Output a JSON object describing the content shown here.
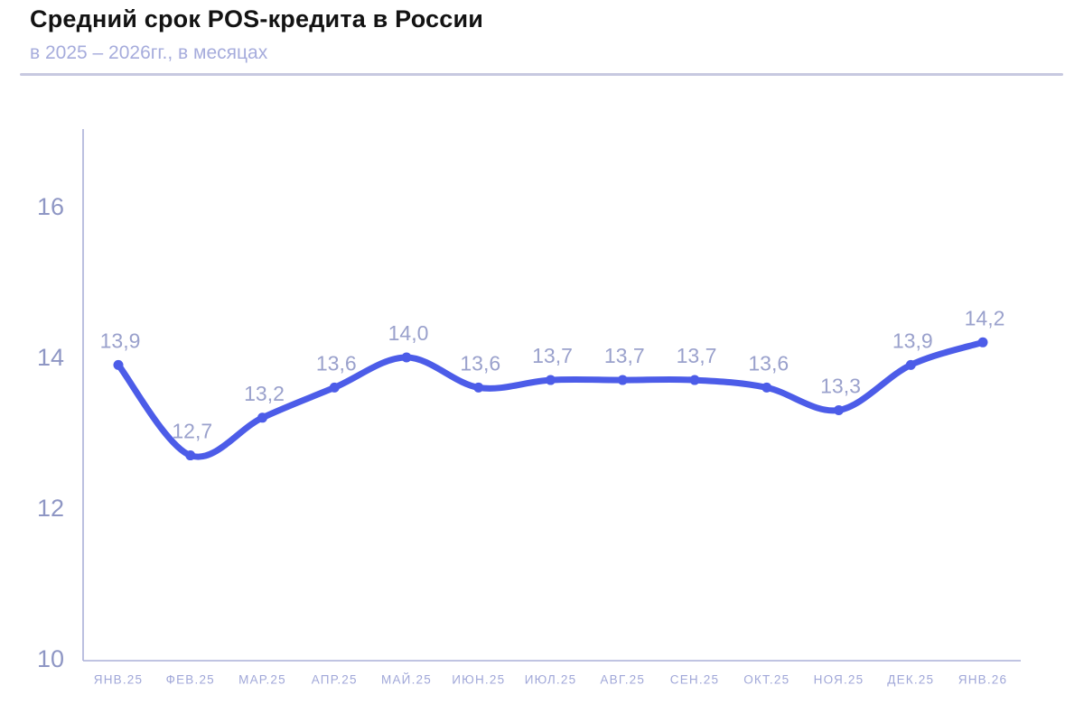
{
  "page": {
    "title": "Средний срок POS-кредита в России",
    "subtitle": "в 2025 – 2026гг., в месяцах"
  },
  "chart_data": {
    "type": "line",
    "title": "Средний срок POS-кредита в России",
    "subtitle": "в 2025 – 2026гг., в месяцах",
    "xlabel": "",
    "ylabel": "",
    "categories": [
      "ЯНВ.25",
      "ФЕВ.25",
      "МАР.25",
      "АПР.25",
      "МАЙ.25",
      "ИЮН.25",
      "ИЮЛ.25",
      "АВГ.25",
      "СЕН.25",
      "ОКТ.25",
      "НОЯ.25",
      "ДЕК.25",
      "ЯНВ.26"
    ],
    "values": [
      13.9,
      12.7,
      13.2,
      13.6,
      14.0,
      13.6,
      13.7,
      13.7,
      13.7,
      13.6,
      13.3,
      13.9,
      14.2
    ],
    "value_labels": [
      "13,9",
      "12,7",
      "13,2",
      "13,6",
      "14,0",
      "13,6",
      "13,7",
      "13,7",
      "13,7",
      "13,6",
      "13,3",
      "13,9",
      "14,2"
    ],
    "ylim": [
      10,
      17.05
    ],
    "yticks": [
      10,
      12,
      14,
      16
    ],
    "grid": false,
    "legend": "none",
    "line_smooth": true,
    "units": "месяцы",
    "colors": {
      "line": "#4c5ce8",
      "marker": "#4c5ce8",
      "point_label": "#9aa1cc",
      "y_tick_label": "#8e96c4",
      "x_tick_label": "#a0a7d8",
      "axis": "#abb0d8",
      "title": "#131313",
      "subtitle": "#a6acdc",
      "separator": "#c7c9e0",
      "background": "#ffffff"
    }
  }
}
